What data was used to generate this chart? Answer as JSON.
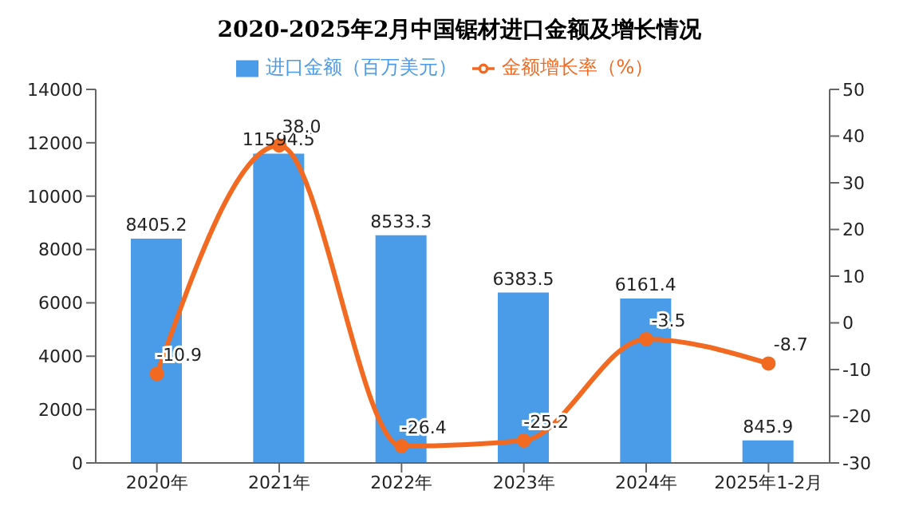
{
  "chart_data": {
    "type": "bar",
    "title": "2020-2025年2月中国锯材进口金额及增长情况",
    "categories": [
      "2020年",
      "2021年",
      "2022年",
      "2023年",
      "2024年",
      "2025年1-2月"
    ],
    "series": [
      {
        "name": "进口金额（百万美元）",
        "color": "#4a9be8",
        "values": [
          8405.2,
          11594.5,
          8533.3,
          6383.5,
          6161.4,
          845.9
        ]
      },
      {
        "name": "金额增长率（%）",
        "type": "line",
        "axis": "y2",
        "color": "#f26a21",
        "values": [
          -10.9,
          38.0,
          -26.4,
          -25.2,
          -3.5,
          -8.7
        ],
        "value_labels": [
          "-10.9",
          "38.0",
          "-26.4",
          "-25.2",
          "-3.5",
          "-8.7"
        ]
      }
    ],
    "ylim": [
      0,
      14000
    ],
    "yticks": [
      0,
      2000,
      4000,
      6000,
      8000,
      10000,
      12000,
      14000
    ],
    "y2lim": [
      -30,
      50
    ],
    "y2ticks": [
      -30,
      -20,
      -10,
      0,
      10,
      20,
      30,
      40,
      50
    ],
    "data_labels": true,
    "legend": "top",
    "marker": "circle"
  }
}
